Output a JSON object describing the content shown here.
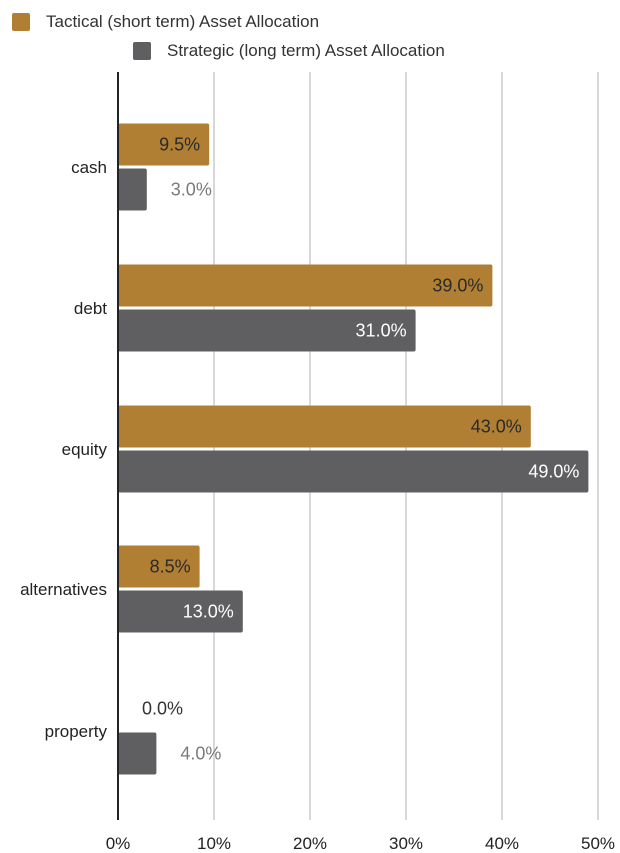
{
  "chart_data": {
    "type": "bar",
    "orientation": "horizontal",
    "categories": [
      "cash",
      "debt",
      "equity",
      "alternatives",
      "property"
    ],
    "series": [
      {
        "name": "Tactical (short term) Asset Allocation",
        "color": "#b07f33",
        "values": [
          9.5,
          39.0,
          43.0,
          8.5,
          0.0
        ],
        "labels": [
          "9.5%",
          "39.0%",
          "43.0%",
          "8.5%",
          "0.0%"
        ]
      },
      {
        "name": "Strategic (long term) Asset Allocation",
        "color": "#5f5f61",
        "values": [
          3.0,
          31.0,
          49.0,
          13.0,
          4.0
        ],
        "labels": [
          "3.0%",
          "31.0%",
          "49.0%",
          "13.0%",
          "4.0%"
        ]
      }
    ],
    "xlim": [
      0,
      50
    ],
    "xticks": [
      0,
      10,
      20,
      30,
      40,
      50
    ],
    "xtick_labels": [
      "0%",
      "10%",
      "20%",
      "30%",
      "40%",
      "50%"
    ],
    "grid": true,
    "legend_position": "top-left",
    "title": "",
    "xlabel": "",
    "ylabel": ""
  }
}
